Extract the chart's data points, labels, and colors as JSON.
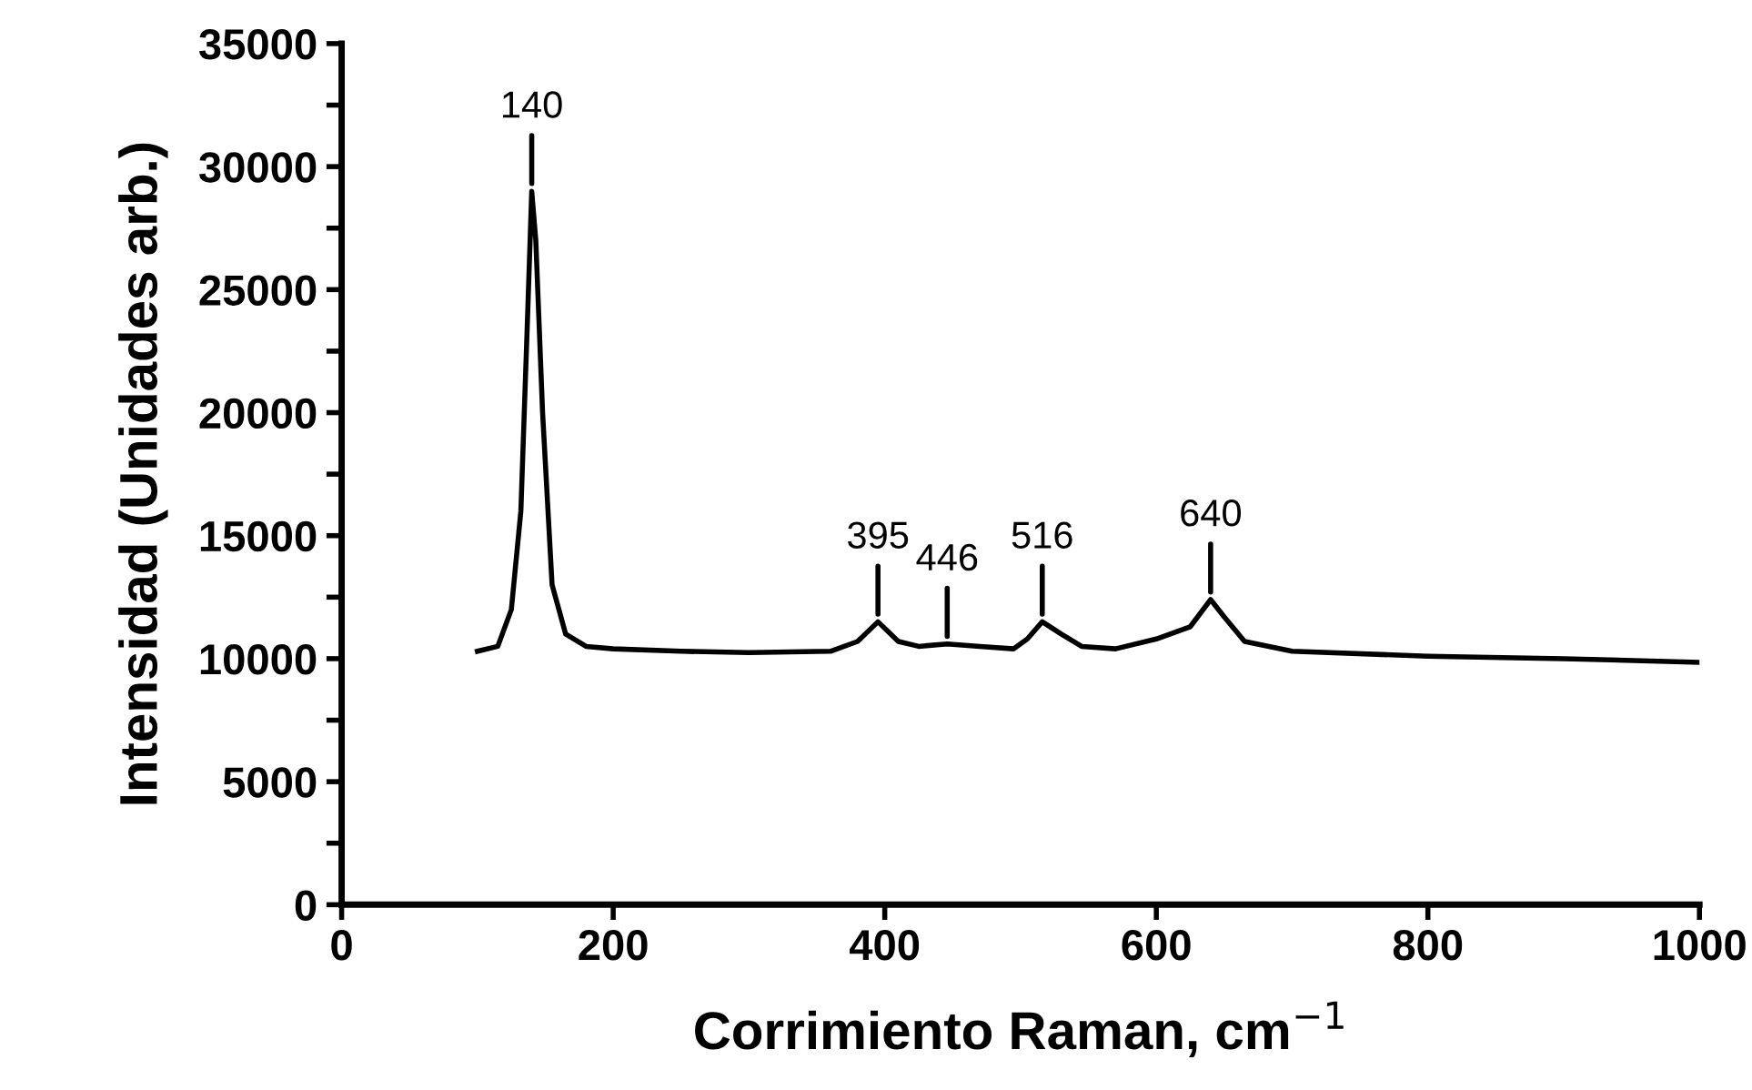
{
  "chart_data": {
    "type": "line",
    "xlabel": "Corrimiento Raman, cm$^{−1}$",
    "ylabel": "Intensidad (Unidades arb.)",
    "xlim": [
      0,
      1000
    ],
    "xticks": [
      0,
      200,
      400,
      600,
      800,
      1000
    ],
    "ylim": [
      0,
      35000
    ],
    "yticks": [
      0,
      {
        "value": 2500,
        "label": null
      },
      5000,
      {
        "value": 7500,
        "label": null
      },
      10000,
      {
        "value": 12500,
        "label": null
      },
      15000,
      {
        "value": 17500,
        "label": null
      },
      20000,
      {
        "value": 22500,
        "label": null
      },
      25000,
      {
        "value": 27500,
        "label": null
      },
      30000,
      {
        "value": 32500,
        "label": null
      },
      35000
    ],
    "grid": false,
    "legend": false,
    "marker": "none",
    "line_style": "solid",
    "series": [
      {
        "color": "#000000",
        "x": [
          100,
          115,
          125,
          132,
          137,
          140,
          143,
          148,
          155,
          165,
          180,
          200,
          250,
          300,
          360,
          380,
          395,
          410,
          425,
          446,
          470,
          495,
          505,
          516,
          530,
          545,
          570,
          600,
          625,
          640,
          650,
          665,
          700,
          800,
          900,
          1000
        ],
        "values": [
          10300,
          10500,
          12000,
          16000,
          24000,
          29000,
          27000,
          20000,
          13000,
          11000,
          10500,
          10400,
          10300,
          10250,
          10300,
          10700,
          11500,
          10700,
          10500,
          10600,
          10500,
          10400,
          10800,
          11500,
          11000,
          10500,
          10400,
          10800,
          11300,
          12400,
          11700,
          10700,
          10300,
          10100,
          10000,
          9850
        ]
      }
    ],
    "annotations": [
      {
        "text": "140",
        "x": 140,
        "y": 29000
      },
      {
        "text": "395",
        "x": 395,
        "y": 11500
      },
      {
        "text": "446",
        "x": 446,
        "y": 10600
      },
      {
        "text": "516",
        "x": 516,
        "y": 11500
      },
      {
        "text": "640",
        "x": 640,
        "y": 12400
      }
    ]
  }
}
